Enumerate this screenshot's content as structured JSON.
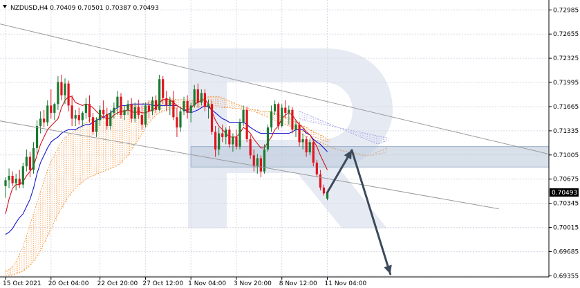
{
  "header": {
    "symbol_line": "NZDUSD,H4  0.70409  0.70501  0.70387  0.70493"
  },
  "colors": {
    "bull": "#1a7a30",
    "bear": "#e0141e",
    "tenkan": "#d0141e",
    "kijun": "#1414d0",
    "kumo_orange": "#f28c2c",
    "kumo_purple": "#a0a0e6",
    "channel": "#9a9a9a",
    "zone": "#b8c6d8",
    "arrow": "#3c4a5c",
    "grid": "#d8d8e6",
    "watermark": "#e6eaf3"
  },
  "chart_data": {
    "type": "candlestick",
    "symbol": "NZDUSD",
    "timeframe": "H4",
    "last_bar": {
      "open": 0.70409,
      "high": 0.70501,
      "low": 0.70387,
      "close": 0.70493
    },
    "current_price_label": "0.70493",
    "current_price": 0.70493,
    "y_ticks": [
      "0.72985",
      "0.72655",
      "0.72325",
      "0.71995",
      "0.71665",
      "0.71335",
      "0.71005",
      "0.70675",
      "0.70345",
      "0.70015",
      "0.69685",
      "0.69355"
    ],
    "ylim": [
      0.6934,
      0.7312
    ],
    "x_ticks": [
      "15 Oct 2021",
      "20 Oct 04:00",
      "22 Oct 20:00",
      "27 Oct 12:00",
      "1 Nov 04:00",
      "3 Nov 20:00",
      "8 Nov 12:00",
      "11 Nov 04:00"
    ],
    "x_tick_bars": [
      0,
      13,
      27,
      40,
      53,
      66,
      79,
      92
    ],
    "total_slots": 160,
    "candles": [
      [
        0.7058,
        0.707,
        0.7042,
        0.7066
      ],
      [
        0.7066,
        0.7082,
        0.7055,
        0.7072
      ],
      [
        0.7072,
        0.7078,
        0.7058,
        0.7062
      ],
      [
        0.7062,
        0.7075,
        0.7052,
        0.7068
      ],
      [
        0.7068,
        0.708,
        0.7055,
        0.706
      ],
      [
        0.706,
        0.709,
        0.7055,
        0.7085
      ],
      [
        0.7085,
        0.7108,
        0.7078,
        0.7098
      ],
      [
        0.7098,
        0.7105,
        0.707,
        0.708
      ],
      [
        0.708,
        0.7118,
        0.7075,
        0.711
      ],
      [
        0.711,
        0.7148,
        0.7102,
        0.714
      ],
      [
        0.714,
        0.716,
        0.713,
        0.715
      ],
      [
        0.715,
        0.7162,
        0.7138,
        0.7145
      ],
      [
        0.7145,
        0.7175,
        0.714,
        0.7168
      ],
      [
        0.7168,
        0.719,
        0.715,
        0.7158
      ],
      [
        0.7158,
        0.7172,
        0.7148,
        0.717
      ],
      [
        0.717,
        0.7208,
        0.7162,
        0.72
      ],
      [
        0.72,
        0.721,
        0.7175,
        0.7182
      ],
      [
        0.7182,
        0.7205,
        0.717,
        0.7198
      ],
      [
        0.7198,
        0.7202,
        0.716,
        0.7168
      ],
      [
        0.7168,
        0.7182,
        0.714,
        0.715
      ],
      [
        0.715,
        0.7162,
        0.714,
        0.7155
      ],
      [
        0.7155,
        0.7165,
        0.7142,
        0.7148
      ],
      [
        0.7148,
        0.716,
        0.714,
        0.7158
      ],
      [
        0.7158,
        0.7178,
        0.715,
        0.717
      ],
      [
        0.717,
        0.7182,
        0.7145,
        0.7152
      ],
      [
        0.7152,
        0.7158,
        0.7128,
        0.7132
      ],
      [
        0.7132,
        0.7152,
        0.7125,
        0.7148
      ],
      [
        0.7148,
        0.7168,
        0.714,
        0.7162
      ],
      [
        0.7162,
        0.7175,
        0.715,
        0.7156
      ],
      [
        0.7156,
        0.7165,
        0.7135,
        0.714
      ],
      [
        0.714,
        0.7162,
        0.7135,
        0.7158
      ],
      [
        0.7158,
        0.7172,
        0.715,
        0.7165
      ],
      [
        0.7165,
        0.7188,
        0.7155,
        0.718
      ],
      [
        0.718,
        0.7185,
        0.715,
        0.7155
      ],
      [
        0.7155,
        0.7168,
        0.7148,
        0.7162
      ],
      [
        0.7162,
        0.7175,
        0.7155,
        0.717
      ],
      [
        0.717,
        0.7178,
        0.7145,
        0.715
      ],
      [
        0.715,
        0.7172,
        0.7145,
        0.7166
      ],
      [
        0.7166,
        0.7176,
        0.715,
        0.7155
      ],
      [
        0.7155,
        0.7168,
        0.7135,
        0.7142
      ],
      [
        0.7142,
        0.7172,
        0.7138,
        0.7168
      ],
      [
        0.7168,
        0.7175,
        0.715,
        0.716
      ],
      [
        0.716,
        0.718,
        0.7155,
        0.7175
      ],
      [
        0.7175,
        0.7182,
        0.7158,
        0.7162
      ],
      [
        0.7162,
        0.721,
        0.716,
        0.7204
      ],
      [
        0.7204,
        0.7208,
        0.717,
        0.7178
      ],
      [
        0.7178,
        0.7188,
        0.716,
        0.7168
      ],
      [
        0.7168,
        0.718,
        0.7155,
        0.7175
      ],
      [
        0.7175,
        0.7188,
        0.7148,
        0.7152
      ],
      [
        0.7152,
        0.7165,
        0.7125,
        0.7138
      ],
      [
        0.7138,
        0.7165,
        0.7132,
        0.716
      ],
      [
        0.716,
        0.718,
        0.7155,
        0.7174
      ],
      [
        0.7174,
        0.7182,
        0.715,
        0.7158
      ],
      [
        0.7158,
        0.7172,
        0.7145,
        0.7168
      ],
      [
        0.7168,
        0.7196,
        0.7165,
        0.719
      ],
      [
        0.719,
        0.7198,
        0.7165,
        0.7172
      ],
      [
        0.7172,
        0.719,
        0.7168,
        0.7185
      ],
      [
        0.7185,
        0.719,
        0.716,
        0.7166
      ],
      [
        0.7166,
        0.7176,
        0.715,
        0.717
      ],
      [
        0.717,
        0.7175,
        0.7128,
        0.7132
      ],
      [
        0.7132,
        0.714,
        0.7098,
        0.7108
      ],
      [
        0.7108,
        0.7138,
        0.71,
        0.713
      ],
      [
        0.713,
        0.7142,
        0.7118,
        0.7125
      ],
      [
        0.7125,
        0.7138,
        0.7115,
        0.7135
      ],
      [
        0.7135,
        0.714,
        0.711,
        0.7115
      ],
      [
        0.7115,
        0.713,
        0.7105,
        0.7125
      ],
      [
        0.7125,
        0.7135,
        0.7108,
        0.7112
      ],
      [
        0.7112,
        0.715,
        0.7108,
        0.7145
      ],
      [
        0.7145,
        0.7168,
        0.714,
        0.7162
      ],
      [
        0.7162,
        0.7166,
        0.7118,
        0.7122
      ],
      [
        0.7122,
        0.7128,
        0.7095,
        0.71
      ],
      [
        0.71,
        0.7108,
        0.7078,
        0.7085
      ],
      [
        0.7085,
        0.7102,
        0.7075,
        0.7096
      ],
      [
        0.7096,
        0.71,
        0.707,
        0.7078
      ],
      [
        0.7078,
        0.7115,
        0.7075,
        0.7108
      ],
      [
        0.7108,
        0.7142,
        0.7105,
        0.7138
      ],
      [
        0.7138,
        0.7168,
        0.7132,
        0.716
      ],
      [
        0.716,
        0.7175,
        0.7155,
        0.717
      ],
      [
        0.717,
        0.7172,
        0.7135,
        0.714
      ],
      [
        0.714,
        0.717,
        0.7138,
        0.7165
      ],
      [
        0.7165,
        0.7175,
        0.715,
        0.7158
      ],
      [
        0.7158,
        0.7168,
        0.7142,
        0.7162
      ],
      [
        0.7162,
        0.7166,
        0.713,
        0.7135
      ],
      [
        0.7135,
        0.7148,
        0.7125,
        0.7142
      ],
      [
        0.7142,
        0.7146,
        0.7112,
        0.7118
      ],
      [
        0.7118,
        0.713,
        0.7108,
        0.7122
      ],
      [
        0.7122,
        0.7126,
        0.7098,
        0.7104
      ],
      [
        0.7104,
        0.7122,
        0.71,
        0.7118
      ],
      [
        0.7118,
        0.712,
        0.7085,
        0.709
      ],
      [
        0.709,
        0.7094,
        0.707,
        0.7074
      ],
      [
        0.7074,
        0.708,
        0.7052,
        0.7056
      ],
      [
        0.7056,
        0.706,
        0.7045,
        0.7048
      ],
      [
        0.70409,
        0.70501,
        0.70387,
        0.70493
      ]
    ],
    "tenkan_sen": [
      0.702,
      0.704,
      0.7055,
      0.706,
      0.706,
      0.7064,
      0.7072,
      0.7078,
      0.7085,
      0.71,
      0.7115,
      0.7125,
      0.7135,
      0.714,
      0.7145,
      0.715,
      0.7165,
      0.7175,
      0.718,
      0.718,
      0.7172,
      0.717,
      0.7168,
      0.717,
      0.7168,
      0.7165,
      0.716,
      0.7155,
      0.7152,
      0.715,
      0.715,
      0.7155,
      0.7158,
      0.716,
      0.716,
      0.7162,
      0.716,
      0.7158,
      0.716,
      0.7158,
      0.7158,
      0.716,
      0.7162,
      0.7165,
      0.7172,
      0.7176,
      0.7176,
      0.7176,
      0.7172,
      0.7168,
      0.7165,
      0.7162,
      0.7162,
      0.7164,
      0.717,
      0.7172,
      0.7175,
      0.7176,
      0.717,
      0.716,
      0.7148,
      0.714,
      0.7135,
      0.713,
      0.7125,
      0.7125,
      0.7125,
      0.713,
      0.7138,
      0.7135,
      0.713,
      0.7122,
      0.7116,
      0.711,
      0.711,
      0.7118,
      0.7125,
      0.7135,
      0.714,
      0.715,
      0.7155,
      0.7158,
      0.7155,
      0.7148,
      0.7142,
      0.7138,
      0.7132,
      0.7128,
      0.712,
      0.7112,
      0.71,
      0.709,
      0.708
    ],
    "kijun_sen": [
      0.6992,
      0.6995,
      0.7,
      0.7008,
      0.7015,
      0.702,
      0.703,
      0.704,
      0.7055,
      0.7075,
      0.709,
      0.71,
      0.711,
      0.7118,
      0.7122,
      0.7125,
      0.713,
      0.7133,
      0.7135,
      0.7135,
      0.7135,
      0.7138,
      0.714,
      0.7142,
      0.7142,
      0.7145,
      0.7148,
      0.715,
      0.7152,
      0.7155,
      0.7158,
      0.7162,
      0.7165,
      0.7168,
      0.7168,
      0.7168,
      0.717,
      0.717,
      0.717,
      0.717,
      0.717,
      0.717,
      0.7168,
      0.7168,
      0.7168,
      0.7168,
      0.7168,
      0.7168,
      0.7168,
      0.7168,
      0.7165,
      0.7162,
      0.716,
      0.7158,
      0.716,
      0.7162,
      0.7165,
      0.7168,
      0.7166,
      0.7162,
      0.7158,
      0.7154,
      0.715,
      0.7148,
      0.7145,
      0.7145,
      0.7145,
      0.7145,
      0.7145,
      0.7142,
      0.7138,
      0.7135,
      0.7132,
      0.713,
      0.713,
      0.713,
      0.713,
      0.713,
      0.713,
      0.713,
      0.713,
      0.713,
      0.7132,
      0.7135,
      0.7135,
      0.7135,
      0.713,
      0.7128,
      0.7122,
      0.7118,
      0.7115,
      0.711,
      0.7105
    ],
    "kumo_orange_span_a": [
      0.6942,
      0.6944,
      0.6948,
      0.6955,
      0.6965,
      0.6975,
      0.699,
      0.7005,
      0.702,
      0.7035,
      0.705,
      0.7065,
      0.708,
      0.7092,
      0.71,
      0.711,
      0.7118,
      0.7125,
      0.7128,
      0.713,
      0.7135,
      0.7138,
      0.7142,
      0.7145,
      0.7148,
      0.715,
      0.715,
      0.7152,
      0.7155,
      0.7156,
      0.7158,
      0.716,
      0.7162,
      0.7165,
      0.7166,
      0.7167,
      0.7168,
      0.7168,
      0.717,
      0.717,
      0.7172,
      0.7172,
      0.7173,
      0.7175,
      0.7176,
      0.7176,
      0.7177,
      0.7177,
      0.7177,
      0.7176,
      0.7176,
      0.7176,
      0.7175,
      0.7175,
      0.7176,
      0.7176,
      0.7176,
      0.7178,
      0.718,
      0.718,
      0.718,
      0.718,
      0.7178,
      0.7176,
      0.7174,
      0.7172,
      0.717,
      0.7168,
      0.7166,
      0.7165,
      0.7163,
      0.7162,
      0.7162,
      0.716,
      0.716,
      0.716,
      0.7158,
      0.7157,
      0.7155,
      0.7153,
      0.7152,
      0.715,
      0.7148,
      0.7145,
      0.7142,
      0.714,
      0.7138,
      0.7135,
      0.7132,
      0.713,
      0.7128,
      0.7125,
      0.7122
    ],
    "kumo_orange_span_b": [
      0.6936,
      0.6936,
      0.6937,
      0.6938,
      0.694,
      0.6942,
      0.6946,
      0.695,
      0.6956,
      0.6962,
      0.697,
      0.698,
      0.699,
      0.7,
      0.701,
      0.702,
      0.7028,
      0.7036,
      0.7044,
      0.705,
      0.7055,
      0.706,
      0.7064,
      0.7068,
      0.707,
      0.7072,
      0.7074,
      0.7076,
      0.7078,
      0.708,
      0.7082,
      0.7084,
      0.7086,
      0.709,
      0.7095,
      0.71,
      0.7108,
      0.7115,
      0.7122,
      0.713,
      0.7138,
      0.7145,
      0.715,
      0.7155,
      0.7158,
      0.716,
      0.7162,
      0.7163,
      0.7164,
      0.7165,
      0.7166,
      0.7166,
      0.7166,
      0.7166,
      0.7166,
      0.7166,
      0.7166,
      0.7166,
      0.7166,
      0.7166,
      0.7166,
      0.7166,
      0.7165,
      0.7165,
      0.7165,
      0.7164,
      0.7164,
      0.7163,
      0.7162,
      0.7162,
      0.7161,
      0.716,
      0.7158,
      0.7156,
      0.7154,
      0.7152,
      0.715,
      0.7148,
      0.7146,
      0.7144,
      0.7142,
      0.714,
      0.7138,
      0.7136,
      0.7134,
      0.7132,
      0.713,
      0.7128,
      0.7126,
      0.7124,
      0.7122,
      0.712,
      0.7118
    ],
    "kumo_purple_span_a": [
      0.716,
      0.7158,
      0.7156,
      0.7154,
      0.7152,
      0.715,
      0.7148,
      0.7146,
      0.7144,
      0.7142,
      0.714,
      0.7138,
      0.7136,
      0.7134,
      0.7132,
      0.713,
      0.7128,
      0.7126,
      0.7124,
      0.7122,
      0.712,
      0.7118,
      0.7116,
      0.7116,
      0.7118,
      0.712
    ],
    "kumo_purple_span_b": [
      0.715,
      0.7148,
      0.7147,
      0.7146,
      0.7145,
      0.7144,
      0.7143,
      0.7142,
      0.7141,
      0.714,
      0.7139,
      0.7138,
      0.7137,
      0.7136,
      0.7135,
      0.7134,
      0.7133,
      0.7132,
      0.7131,
      0.713,
      0.7129,
      0.7128,
      0.7127,
      0.7126,
      0.7125,
      0.7124
    ],
    "kumo_purple_start_bar": 84,
    "orange_tail_bars": 26,
    "orange_tail_span_a": [
      0.713,
      0.7128,
      0.7126,
      0.7124,
      0.7122,
      0.712,
      0.7118,
      0.7116,
      0.7114,
      0.7112,
      0.711,
      0.7108,
      0.7106,
      0.7105,
      0.7104,
      0.7103,
      0.7102,
      0.7101,
      0.71,
      0.71,
      0.71,
      0.7102,
      0.7104,
      0.7106,
      0.7108,
      0.711
    ],
    "orange_tail_span_b": [
      0.7118,
      0.7118,
      0.7117,
      0.7116,
      0.7115,
      0.7114,
      0.7113,
      0.7112,
      0.7111,
      0.711,
      0.7109,
      0.7108,
      0.7107,
      0.7106,
      0.7105,
      0.7104,
      0.7103,
      0.7102,
      0.7101,
      0.71,
      0.71,
      0.71,
      0.7101,
      0.7102,
      0.7103,
      0.7104
    ],
    "channel_upper": [
      [
        -4,
        0.7282
      ],
      [
        155,
        0.7102
      ]
    ],
    "channel_lower": [
      [
        -10,
        0.7154
      ],
      [
        141,
        0.7027
      ]
    ],
    "support_zone": {
      "bar_from": 53,
      "bar_to": 174,
      "price_low": 0.7084,
      "price_high": 0.7112
    },
    "forecast_path": [
      [
        92,
        0.70493
      ],
      [
        99,
        0.7107
      ],
      [
        110,
        0.6938
      ]
    ]
  }
}
